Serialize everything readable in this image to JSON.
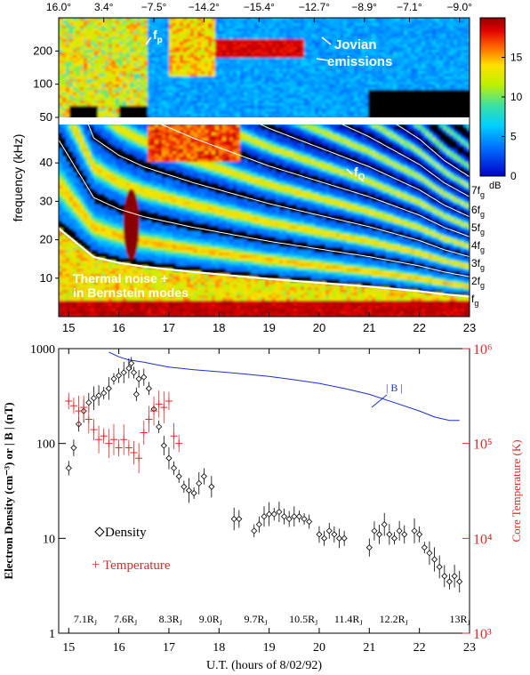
{
  "chart_data": [
    {
      "type": "heatmap",
      "panel": "spectrogram",
      "top_tick_labels": [
        "16.0°",
        "3.4°",
        "−7.5°",
        "−14.2°",
        "−15.4°",
        "−12.7°",
        "−8.9°",
        "−7.1°",
        "−9.0°"
      ],
      "top_tick_hours": [
        14.8,
        15.7,
        16.7,
        17.7,
        18.8,
        19.9,
        20.9,
        21.8,
        22.8
      ],
      "ylabel": "frequency (kHz)",
      "upper_yticks": [
        50,
        100,
        200
      ],
      "upper_ylim": [
        50,
        400
      ],
      "lower_yticks": [
        10,
        20,
        30,
        40
      ],
      "lower_ylim": [
        0,
        50
      ],
      "xlim": [
        14.8,
        23.0
      ],
      "colorbar": {
        "label": "dB",
        "ticks": [
          0,
          5,
          10,
          15
        ],
        "range": [
          0,
          20
        ]
      },
      "harmonic_labels": [
        "7f",
        "6f",
        "5f",
        "4f",
        "3f",
        "2f",
        "f"
      ],
      "harmonic_subscript": "g",
      "fq_label": "f",
      "fq_subscript": "Q",
      "fp_label": "f",
      "fp_subscript": "p",
      "annotations": {
        "jovian_line1": "Jovian",
        "jovian_line2": "emissions",
        "thermal_line1": "Thermal noise +",
        "thermal_line2": "in Bernstein modes"
      },
      "fg_khz_by_hour": {
        "x": [
          14.8,
          15.5,
          16.0,
          16.5,
          17.0,
          17.5,
          18.0,
          18.5,
          19.0,
          19.5,
          20.0,
          20.5,
          21.0,
          21.5,
          22.0,
          22.5,
          23.0
        ],
        "fg": [
          23.0,
          15.5,
          14.0,
          13.0,
          12.3,
          11.6,
          11.0,
          10.4,
          9.8,
          9.3,
          8.8,
          8.3,
          7.8,
          7.2,
          6.6,
          5.8,
          5.2
        ]
      }
    },
    {
      "type": "scatter",
      "panel": "density_temperature",
      "xlabel": "U.T. (hours of 8/02/92)",
      "ylabel_left": "Electron Density (cm⁻³) or | B | (nT)",
      "ylabel_right": "Core Temperature (K)",
      "xlim": [
        14.8,
        23.0
      ],
      "xticks": [
        15,
        16,
        17,
        18,
        19,
        20,
        21,
        22,
        23
      ],
      "ylim_left": [
        1,
        1000
      ],
      "left_yticks": [
        "1",
        "10",
        "100",
        "1000"
      ],
      "ylim_right": [
        1000,
        1000000
      ],
      "right_yticks": [
        "10³",
        "10⁴",
        "10⁵",
        "10⁶"
      ],
      "legend": {
        "density": "Density",
        "temperature": "Temperature",
        "b": "| B |"
      },
      "distance_labels": [
        "7.1R",
        "7.6R",
        "8.3R",
        "9.0R",
        "9.7R",
        "10.5R",
        "11.4R",
        "12.2R",
        "13R"
      ],
      "distance_hours": [
        15.1,
        15.9,
        16.8,
        17.6,
        18.5,
        19.4,
        20.3,
        21.2,
        22.6
      ],
      "distance_subscript": "J",
      "series": [
        {
          "name": "| B |",
          "color": "#1a2fcc",
          "x": [
            15.8,
            16.0,
            16.2,
            16.5,
            16.8,
            17.0,
            17.5,
            18.0,
            18.5,
            19.0,
            19.5,
            20.0,
            20.5,
            21.0,
            21.5,
            22.0,
            22.3,
            22.6,
            22.8
          ],
          "y": [
            920,
            820,
            760,
            720,
            670,
            640,
            600,
            570,
            540,
            510,
            470,
            430,
            380,
            330,
            270,
            220,
            190,
            175,
            175
          ]
        },
        {
          "name": "Density",
          "color": "#000000",
          "x": [
            15.0,
            15.1,
            15.2,
            15.3,
            15.4,
            15.5,
            15.6,
            15.7,
            15.8,
            15.9,
            16.0,
            16.1,
            16.2,
            16.25,
            16.3,
            16.35,
            16.4,
            16.5,
            16.6,
            16.7,
            16.8,
            16.9,
            17.0,
            17.1,
            17.2,
            17.3,
            17.4,
            17.5,
            17.6,
            17.7,
            17.85,
            18.3,
            18.4,
            18.7,
            18.8,
            18.9,
            19.0,
            19.1,
            19.2,
            19.3,
            19.4,
            19.5,
            19.6,
            19.7,
            19.8,
            20.0,
            20.1,
            20.2,
            20.3,
            20.4,
            20.5,
            21.0,
            21.1,
            21.2,
            21.3,
            21.4,
            21.5,
            21.6,
            21.7,
            21.9,
            22.0,
            22.1,
            22.2,
            22.3,
            22.4,
            22.5,
            22.6,
            22.7,
            22.8
          ],
          "y": [
            55,
            90,
            160,
            220,
            270,
            300,
            320,
            340,
            380,
            480,
            520,
            560,
            620,
            700,
            560,
            330,
            480,
            500,
            380,
            230,
            150,
            95,
            70,
            55,
            45,
            35,
            32,
            30,
            38,
            45,
            35,
            16,
            16,
            12,
            14,
            17,
            18,
            18,
            19,
            17,
            16,
            17,
            17,
            16,
            15,
            11,
            10,
            12,
            11,
            10,
            10,
            8,
            12,
            11,
            14,
            11,
            10,
            12,
            11,
            12,
            11,
            8,
            7,
            6,
            5,
            4,
            3.5,
            4,
            3.5
          ]
        },
        {
          "name": "Temperature",
          "color": "#dd2a2a",
          "x": [
            15.0,
            15.1,
            15.2,
            15.3,
            15.4,
            15.5,
            15.6,
            15.7,
            15.8,
            15.9,
            16.0,
            16.1,
            16.2,
            16.3,
            16.4,
            16.5,
            16.6,
            16.7,
            16.8,
            16.9,
            17.0,
            17.1,
            17.2
          ],
          "y": [
            280000,
            250000,
            220000,
            240000,
            180000,
            140000,
            110000,
            120000,
            100000,
            110000,
            90000,
            110000,
            90000,
            80000,
            70000,
            130000,
            180000,
            220000,
            260000,
            240000,
            280000,
            120000,
            100000
          ]
        }
      ]
    }
  ]
}
